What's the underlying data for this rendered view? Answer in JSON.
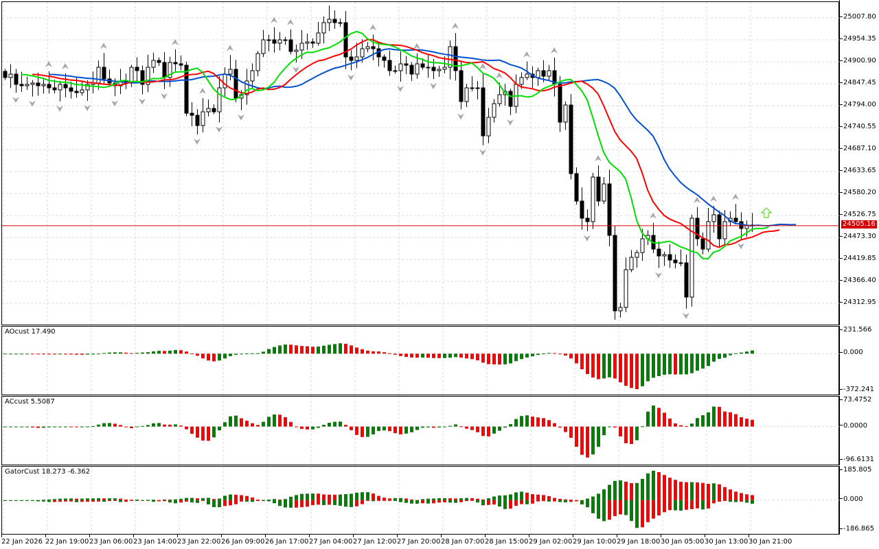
{
  "chart_data": {
    "type": "candlestick",
    "main": {
      "current_price": "24505.16",
      "price_line_color": "#e00000",
      "ylim": [
        24259.5,
        25049.6
      ],
      "y_ticks": [
        "25007.80",
        "24954.35",
        "24900.90",
        "24847.45",
        "24794.00",
        "24740.55",
        "24687.10",
        "24633.65",
        "24580.20",
        "24526.75",
        "24473.30",
        "24419.85",
        "24366.40",
        "24312.95"
      ],
      "x_ticks": [
        "22 Jan 2026",
        "22 Jan 19:00",
        "23 Jan 06:00",
        "23 Jan 14:00",
        "23 Jan 22:00",
        "26 Jan 09:00",
        "26 Jan 17:00",
        "27 Jan 04:00",
        "27 Jan 12:00",
        "27 Jan 20:00",
        "28 Jan 07:00",
        "28 Jan 15:00",
        "29 Jan 02:00",
        "29 Jan 10:00",
        "29 Jan 18:00",
        "30 Jan 05:00",
        "30 Jan 13:00",
        "30 Jan 21:00"
      ],
      "close": [
        24865.9,
        24874.2,
        24849.2,
        24845.8,
        24849.2,
        24852.5,
        24845.8,
        24849.2,
        24840.8,
        24835.8,
        24849.2,
        24840.8,
        24832.5,
        24829.1,
        24835.8,
        24849.2,
        24852.5,
        24890.9,
        24862.5,
        24852.5,
        24845.8,
        24857.5,
        24852.5,
        24890.9,
        24882.6,
        24849.2,
        24890.9,
        24907.6,
        24902.6,
        24865.9,
        24902.6,
        24899.3,
        24895.9,
        24779.0,
        24774.0,
        24749.0,
        24782.4,
        24790.7,
        24782.4,
        24840.8,
        24874.2,
        24885.9,
        24815.8,
        24824.1,
        24857.5,
        24882.6,
        24924.3,
        24957.7,
        24957.7,
        24949.4,
        24957.7,
        24957.7,
        24929.3,
        24932.7,
        24949.4,
        24952.7,
        24949.4,
        24974.4,
        24999.5,
        25007.8,
        24999.5,
        24999.5,
        24916.0,
        24907.6,
        24916.0,
        24936.0,
        24941.0,
        24936.0,
        24916.0,
        24907.6,
        24882.6,
        24882.6,
        24899.3,
        24895.9,
        24874.2,
        24899.3,
        24890.9,
        24890.9,
        24882.6,
        24885.9,
        24890.9,
        24941.0,
        24882.6,
        24807.4,
        24840.8,
        24840.8,
        24840.8,
        24723.9,
        24769.0,
        24802.4,
        24824.1,
        24832.5,
        24795.7,
        24849.2,
        24865.9,
        24874.2,
        24865.9,
        24882.6,
        24869.2,
        24882.6,
        24849.2,
        24757.3,
        24799.0,
        24632.0,
        24565.2,
        24523.5,
        24515.1,
        24623.7,
        24565.2,
        24607.0,
        24481.7,
        24298.0,
        24306.3,
        24398.2,
        24428.3,
        24439.9,
        24473.4,
        24481.7,
        24448.3,
        24431.6,
        24434.9,
        24421.6,
        24414.9,
        24414.9,
        24331.4,
        24523.5,
        24473.4,
        24448.3,
        24515.1,
        24531.8,
        24473.4,
        24515.1,
        24523.5,
        24515.1,
        24498.4,
        24506.8,
        24505.16
      ],
      "lines": [
        {
          "name": "jaw",
          "color": "#0050d0",
          "period": 13,
          "shift": 8
        },
        {
          "name": "teeth",
          "color": "#ff0000",
          "period": 8,
          "shift": 5
        },
        {
          "name": "lips",
          "color": "#00e000",
          "period": 5,
          "shift": 3
        }
      ],
      "signal_arrow": {
        "direction": "up",
        "color": "#66dd33"
      }
    },
    "indicators": [
      {
        "label": "AOcust 17.490",
        "ylim": [
          -372.241,
          231.566
        ],
        "ticks": [
          "231.566",
          "0.000",
          "-372.241"
        ],
        "type": "ao"
      },
      {
        "label": "ACcust 5.5087",
        "ylim": [
          -96.6131,
          73.4752
        ],
        "ticks": [
          "73.4752",
          "0.0000",
          "-96.6131"
        ],
        "type": "ac"
      },
      {
        "label": "GatorCust 18.273 -6.362",
        "ylim": [
          -186.865,
          185.805
        ],
        "ticks": [
          "185.805",
          "0.000",
          "-186.865"
        ],
        "type": "gator"
      }
    ],
    "colors": {
      "up": "#008000",
      "down": "#ff0000",
      "grid": "#d8d8d8"
    }
  }
}
